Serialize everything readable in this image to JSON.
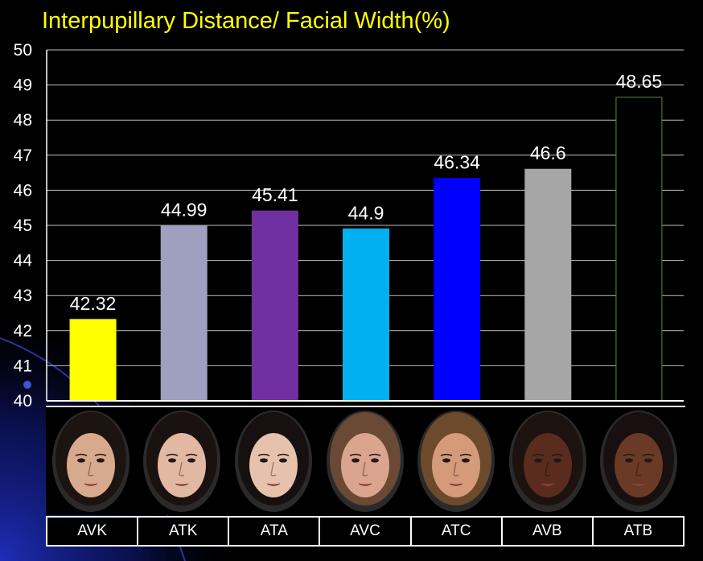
{
  "chart_data": {
    "type": "bar",
    "title": "Interpupillary Distance/ Facial Width(%)",
    "categories": [
      "AVK",
      "ATK",
      "ATA",
      "AVC",
      "ATC",
      "AVB",
      "ATB"
    ],
    "values": [
      42.32,
      44.99,
      45.41,
      44.9,
      46.34,
      46.6,
      48.65
    ],
    "value_labels": [
      "42.32",
      "44.99",
      "45.41",
      "44.9",
      "46.34",
      "46.6",
      "48.65"
    ],
    "bar_colors": [
      "#ffff00",
      "#9f9fbf",
      "#7030a0",
      "#00b0f0",
      "#0000ff",
      "#a6a6a6",
      "#000000"
    ],
    "bar_outline_colors": [
      "#ffff00",
      "#9f9fbf",
      "#7030a0",
      "#00b0f0",
      "#0000ff",
      "#a6a6a6",
      "#5a8a3c"
    ],
    "ylim": [
      40,
      50
    ],
    "yticks": [
      "40",
      "41",
      "42",
      "43",
      "44",
      "45",
      "46",
      "47",
      "48",
      "49",
      "50"
    ],
    "xlabel": "",
    "ylabel": "",
    "grid": true,
    "legend": "none"
  },
  "faces": [
    {
      "label": "AVK",
      "skin": "#d7a98d",
      "hair": "#1c1410"
    },
    {
      "label": "ATK",
      "skin": "#e2b8a2",
      "hair": "#1a1210"
    },
    {
      "label": "ATA",
      "skin": "#e6c2ad",
      "hair": "#161010"
    },
    {
      "label": "AVC",
      "skin": "#dba48f",
      "hair": "#6a4a34"
    },
    {
      "label": "ATC",
      "skin": "#d49a7a",
      "hair": "#6e4a2c"
    },
    {
      "label": "AVB",
      "skin": "#5a2c1e",
      "hair": "#1c1210"
    },
    {
      "label": "ATB",
      "skin": "#6a3a26",
      "hair": "#181010"
    }
  ],
  "colors": {
    "background": "#000000",
    "title": "#ffff00",
    "axis_text": "#ffffff",
    "gridline": "#bfbfbf",
    "swoosh": "#1d2bb0"
  }
}
